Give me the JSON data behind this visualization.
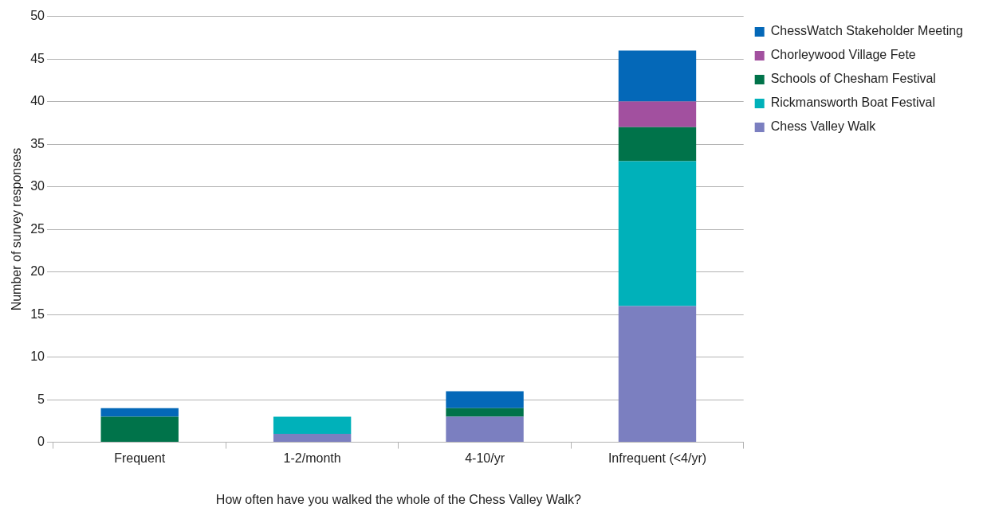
{
  "chart_data": {
    "type": "bar",
    "stacked": true,
    "xlabel": "How often have you walked the whole of the Chess Valley Walk?",
    "ylabel": "Number of survey responses",
    "categories": [
      "Frequent",
      "1-2/month",
      "4-10/yr",
      "Infrequent (<4/yr)"
    ],
    "series": [
      {
        "name": "Chess Valley Walk",
        "color": "#7b7fc0",
        "values": [
          0,
          1,
          3,
          16
        ]
      },
      {
        "name": "Rickmansworth Boat Festival",
        "color": "#00b1ba",
        "values": [
          0,
          2,
          0,
          17
        ]
      },
      {
        "name": "Schools of Chesham Festival",
        "color": "#00734a",
        "values": [
          3,
          0,
          1,
          4
        ]
      },
      {
        "name": "Chorleywood Village Fete",
        "color": "#a2509f",
        "values": [
          0,
          0,
          0,
          3
        ]
      },
      {
        "name": "ChessWatch Stakeholder Meeting",
        "color": "#0468b8",
        "values": [
          1,
          0,
          2,
          6
        ]
      }
    ],
    "ylim": [
      0,
      50
    ],
    "yticks": [
      0,
      5,
      10,
      15,
      20,
      25,
      30,
      35,
      40,
      45,
      50
    ],
    "grid": "y",
    "legend": "right"
  }
}
